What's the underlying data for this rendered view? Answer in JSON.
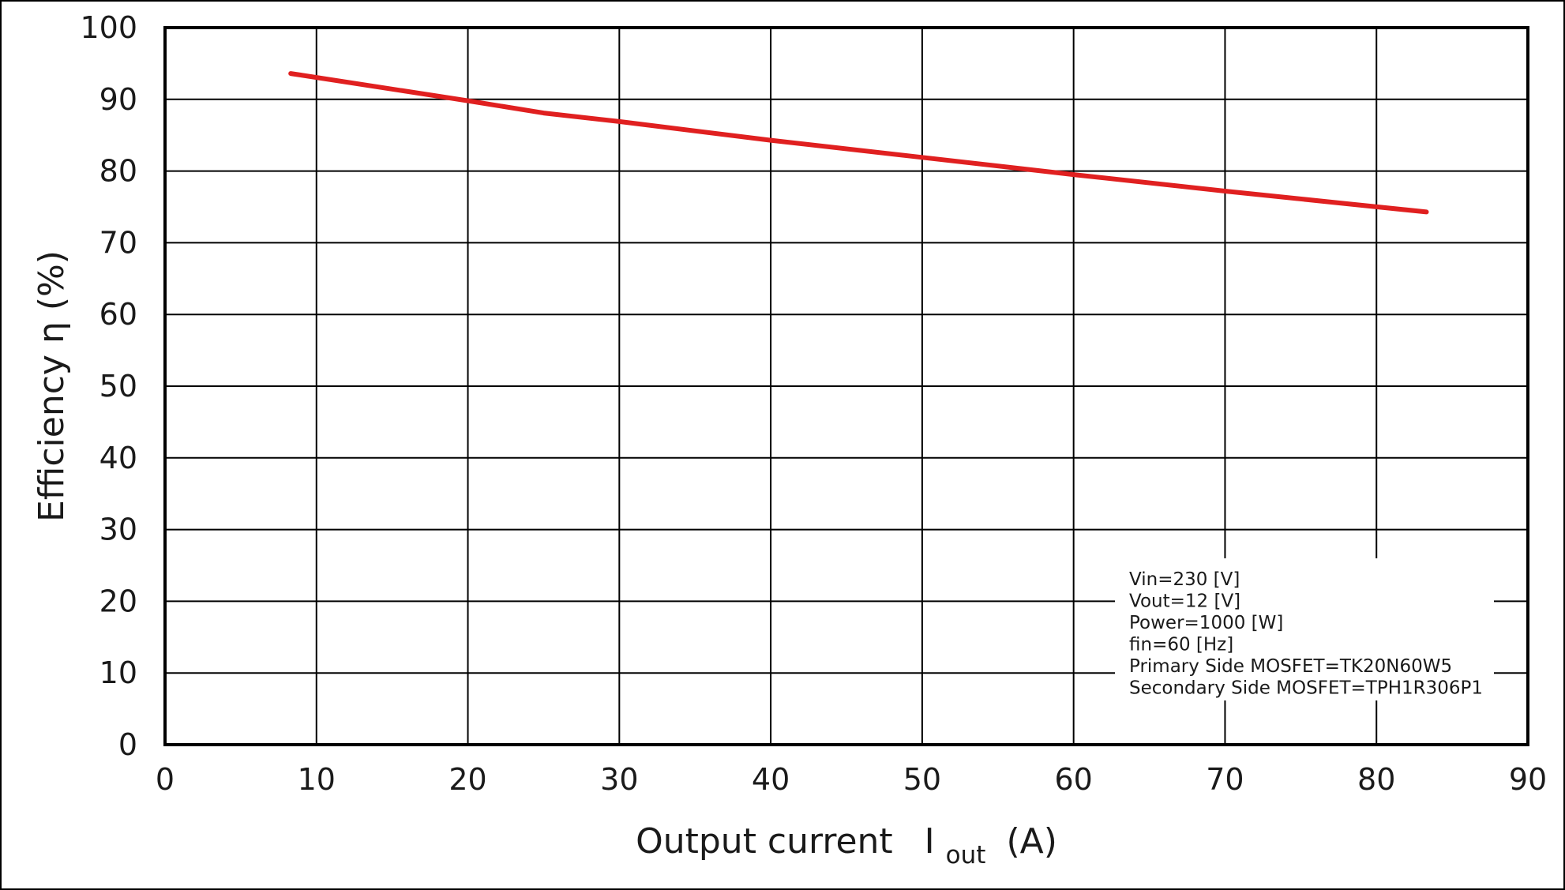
{
  "chart_data": {
    "type": "line",
    "title": "",
    "xlabel": "Output current",
    "xlabel_symbol": "I",
    "xlabel_subscript": "out",
    "xlabel_unit": "(A)",
    "ylabel": "Efficiency η (%)",
    "xlim": [
      0,
      90
    ],
    "ylim": [
      0,
      100
    ],
    "xticks": [
      0,
      10,
      20,
      30,
      40,
      50,
      60,
      70,
      80,
      90
    ],
    "yticks": [
      0,
      10,
      20,
      30,
      40,
      50,
      60,
      70,
      80,
      90,
      100
    ],
    "grid": true,
    "series": [
      {
        "color": "#e02020",
        "x": [
          8.3,
          20,
          25,
          30,
          40,
          50,
          60,
          70,
          83.3
        ],
        "y": [
          93.6,
          89.8,
          88.1,
          86.9,
          84.3,
          81.9,
          79.5,
          77.2,
          74.3
        ]
      }
    ],
    "annotations": [
      "Vin=230 [V]",
      "Vout=12 [V]",
      "Power=1000 [W]",
      "fin=60 [Hz]",
      "Primary Side MOSFET=TK20N60W5",
      "Secondary Side MOSFET=TPH1R306P1"
    ]
  }
}
